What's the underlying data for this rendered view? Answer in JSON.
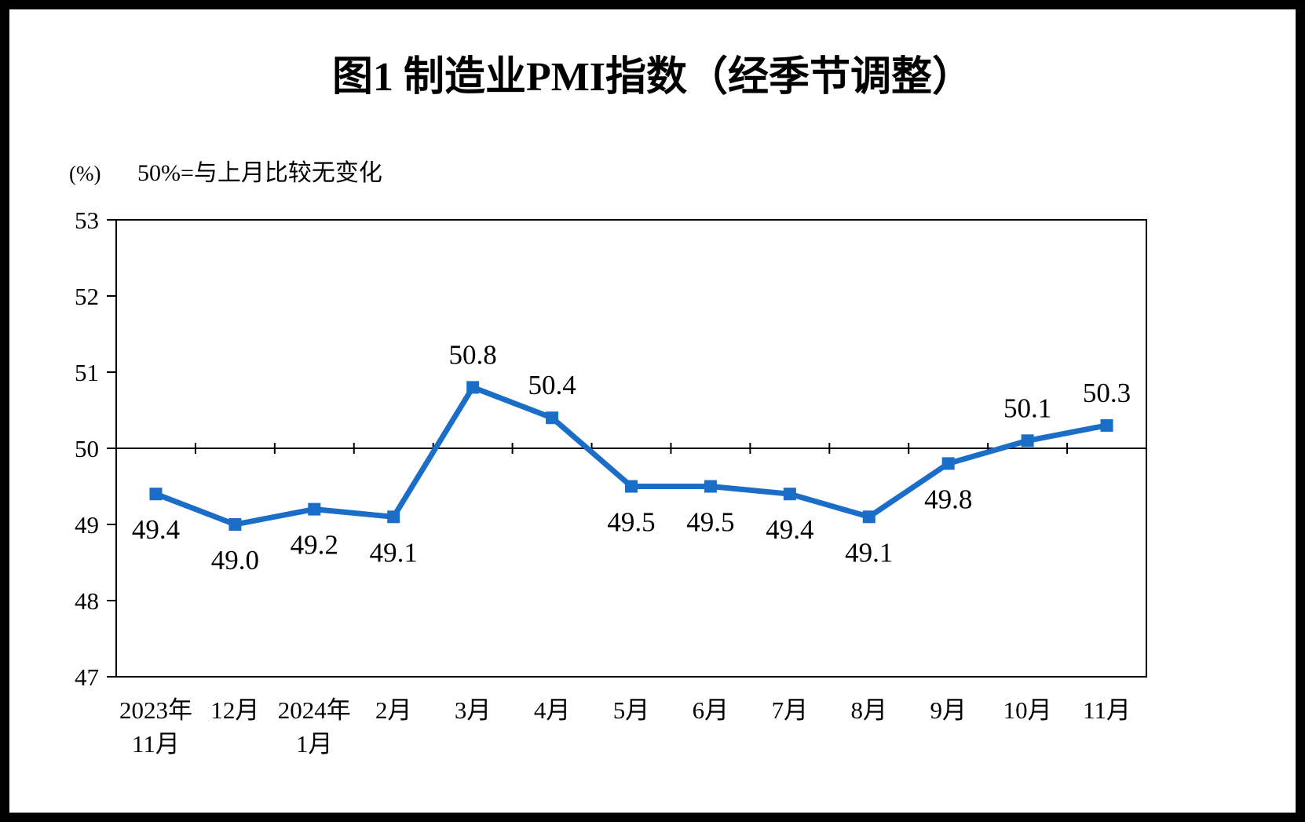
{
  "chart_data": {
    "type": "line",
    "title": "图1  制造业PMI指数（经季节调整）",
    "ylabel": "(%)",
    "annotation": "50%=与上月比较无变化",
    "categories": [
      "2023年\n11月",
      "12月",
      "2024年\n1月",
      "2月",
      "3月",
      "4月",
      "5月",
      "6月",
      "7月",
      "8月",
      "9月",
      "10月",
      "11月"
    ],
    "values": [
      49.4,
      49.0,
      49.2,
      49.1,
      50.8,
      50.4,
      49.5,
      49.5,
      49.4,
      49.1,
      49.8,
      50.1,
      50.3
    ],
    "value_labels": [
      "49.4",
      "49.0",
      "49.2",
      "49.1",
      "50.8",
      "50.4",
      "49.5",
      "49.5",
      "49.4",
      "49.1",
      "49.8",
      "50.1",
      "50.3"
    ],
    "ylim": [
      47,
      53
    ],
    "yticks": [
      47,
      48,
      49,
      50,
      51,
      52,
      53
    ],
    "reference_line": 50,
    "line_color": "#1b6ec8",
    "marker": "square",
    "grid": false,
    "legend": "none"
  }
}
